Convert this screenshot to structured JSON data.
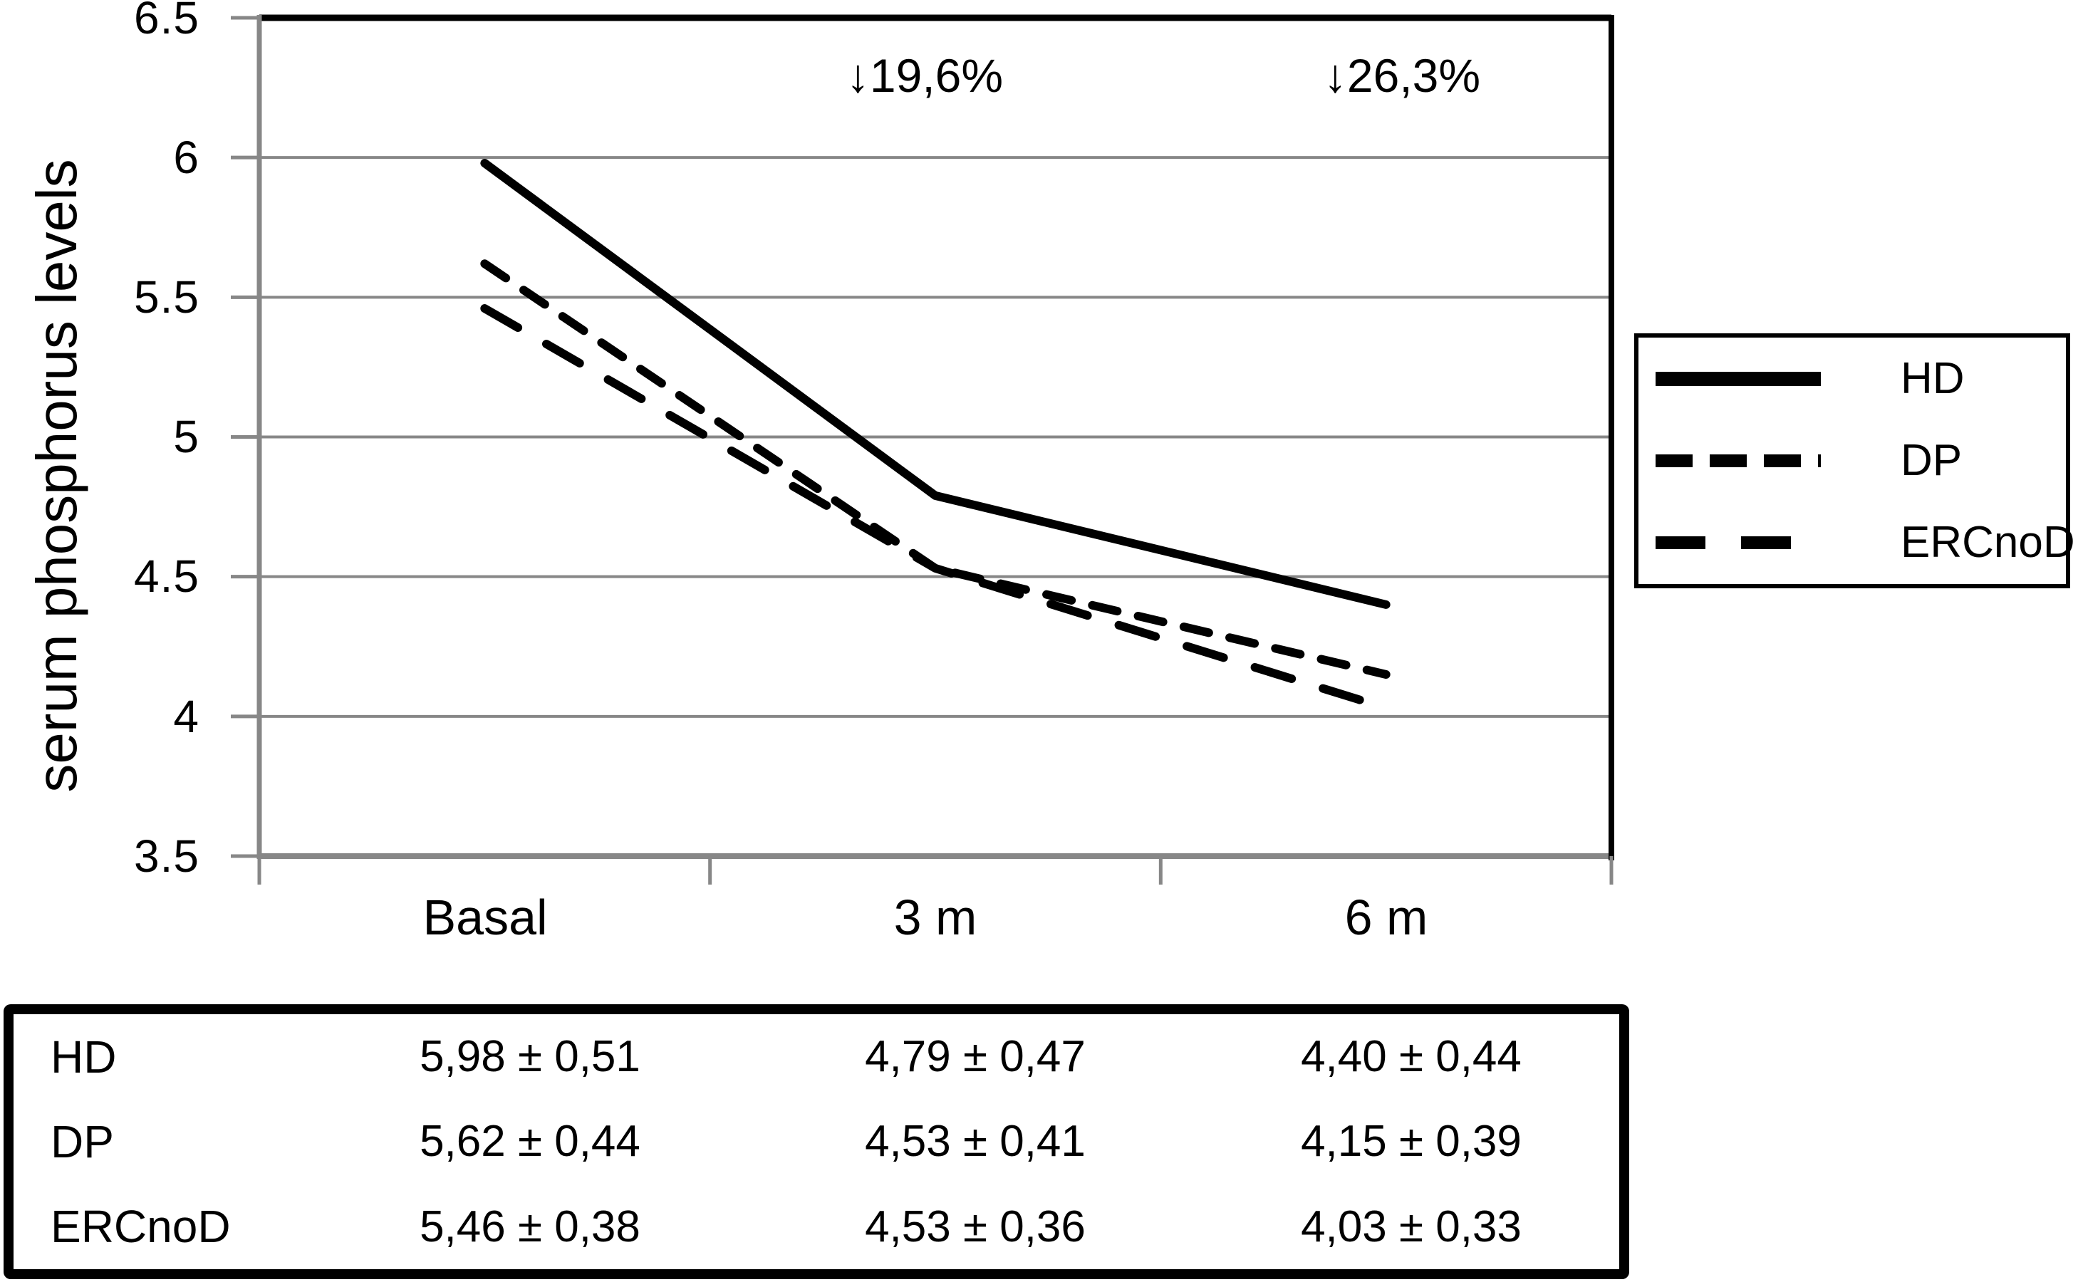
{
  "chart_data": {
    "type": "line",
    "title": "",
    "xlabel": "",
    "ylabel": "serum phosphorus levels",
    "categories": [
      "Basal",
      "3 m",
      "6 m"
    ],
    "series": [
      {
        "name": "HD",
        "values": [
          5.98,
          4.79,
          4.4
        ],
        "style": "solid"
      },
      {
        "name": "DP",
        "values": [
          5.62,
          4.53,
          4.15
        ],
        "style": "dash-short"
      },
      {
        "name": "ERCnoD",
        "values": [
          5.46,
          4.53,
          4.03
        ],
        "style": "dash-long"
      }
    ],
    "ylim": [
      3.5,
      6.5
    ],
    "y_ticks": [
      "6.5",
      "6",
      "5.5",
      "5",
      "4.5",
      "4",
      "3.5"
    ],
    "y_tick_values": [
      6.5,
      6,
      5.5,
      5,
      4.5,
      4,
      3.5
    ],
    "annotations": [
      {
        "text": "↓19,6%",
        "near_category": "3 m"
      },
      {
        "text": "↓26,3%",
        "near_category": "6 m"
      }
    ],
    "grid": "horizontal",
    "legend_position": "right",
    "colors": {
      "line": "#000000",
      "grid": "#878787",
      "axis": "#878787",
      "top_border": "#000000",
      "right_border": "#000000"
    }
  },
  "legend": {
    "items": [
      {
        "label": "HD"
      },
      {
        "label": "DP"
      },
      {
        "label": "ERCnoD"
      }
    ]
  },
  "table": {
    "rows": [
      {
        "label": "HD",
        "values": [
          "5,98 ± 0,51",
          "4,79 ± 0,47",
          "4,40 ± 0,44"
        ]
      },
      {
        "label": "DP",
        "values": [
          "5,62 ± 0,44",
          "4,53 ± 0,41",
          "4,15 ± 0,39"
        ]
      },
      {
        "label": "ERCnoD",
        "values": [
          "5,46 ± 0,38",
          "4,53 ± 0,36",
          "4,03 ± 0,33"
        ]
      }
    ]
  }
}
